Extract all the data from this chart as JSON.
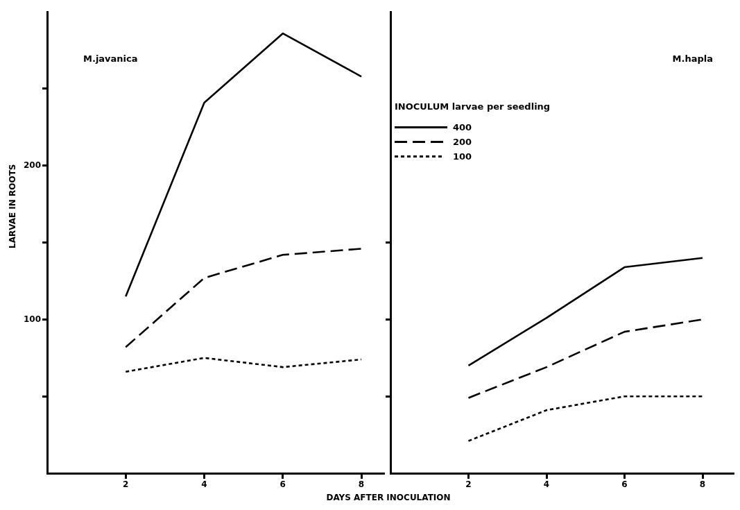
{
  "chart_data": [
    {
      "type": "line",
      "title": "M.javanica",
      "ylabel": "LARVAE IN ROOTS",
      "xlabel": "DAYS AFTER INOCULATION",
      "x": [
        2,
        4,
        6,
        8
      ],
      "xlim": [
        0,
        8.6
      ],
      "xticks": [
        2,
        4,
        6,
        8
      ],
      "ylim": [
        0,
        300
      ],
      "yticks": [
        {
          "value": 50,
          "label": null
        },
        {
          "value": 100,
          "label": "100"
        },
        {
          "value": 150,
          "label": null
        },
        {
          "value": 200,
          "label": "200"
        },
        {
          "value": 250,
          "label": null
        }
      ],
      "grid": false,
      "legend": false,
      "marker": "none",
      "series": [
        {
          "color": "#000000",
          "line_style": "solid",
          "values": [
            115,
            241,
            286,
            258
          ]
        },
        {
          "color": "#000000",
          "line_style": "dashed",
          "values": [
            82,
            127,
            142,
            146
          ]
        },
        {
          "color": "#000000",
          "line_style": "dotted",
          "values": [
            66,
            75,
            69,
            74
          ]
        }
      ]
    },
    {
      "type": "line",
      "title": "M.hapla",
      "legend_title": "INOCULUM larvae per seedling",
      "x": [
        2,
        4,
        6,
        8
      ],
      "xlim": [
        0,
        8.8
      ],
      "xticks": [
        2,
        4,
        6,
        8
      ],
      "ylim": [
        0,
        300
      ],
      "yticks": [
        {
          "value": 50,
          "label": null
        },
        {
          "value": 100,
          "label": null
        },
        {
          "value": 150,
          "label": null
        }
      ],
      "tick_labels": "x",
      "grid": false,
      "legend": "top left",
      "marker": "none",
      "series": [
        {
          "name": "400",
          "color": "#000000",
          "line_style": "solid",
          "values": [
            70,
            101,
            134,
            140
          ]
        },
        {
          "name": "200",
          "color": "#000000",
          "line_style": "dashed",
          "values": [
            49,
            69,
            92,
            100
          ]
        },
        {
          "name": "100",
          "color": "#000000",
          "line_style": "dotted",
          "values": [
            21,
            41,
            50,
            50
          ]
        }
      ]
    }
  ]
}
